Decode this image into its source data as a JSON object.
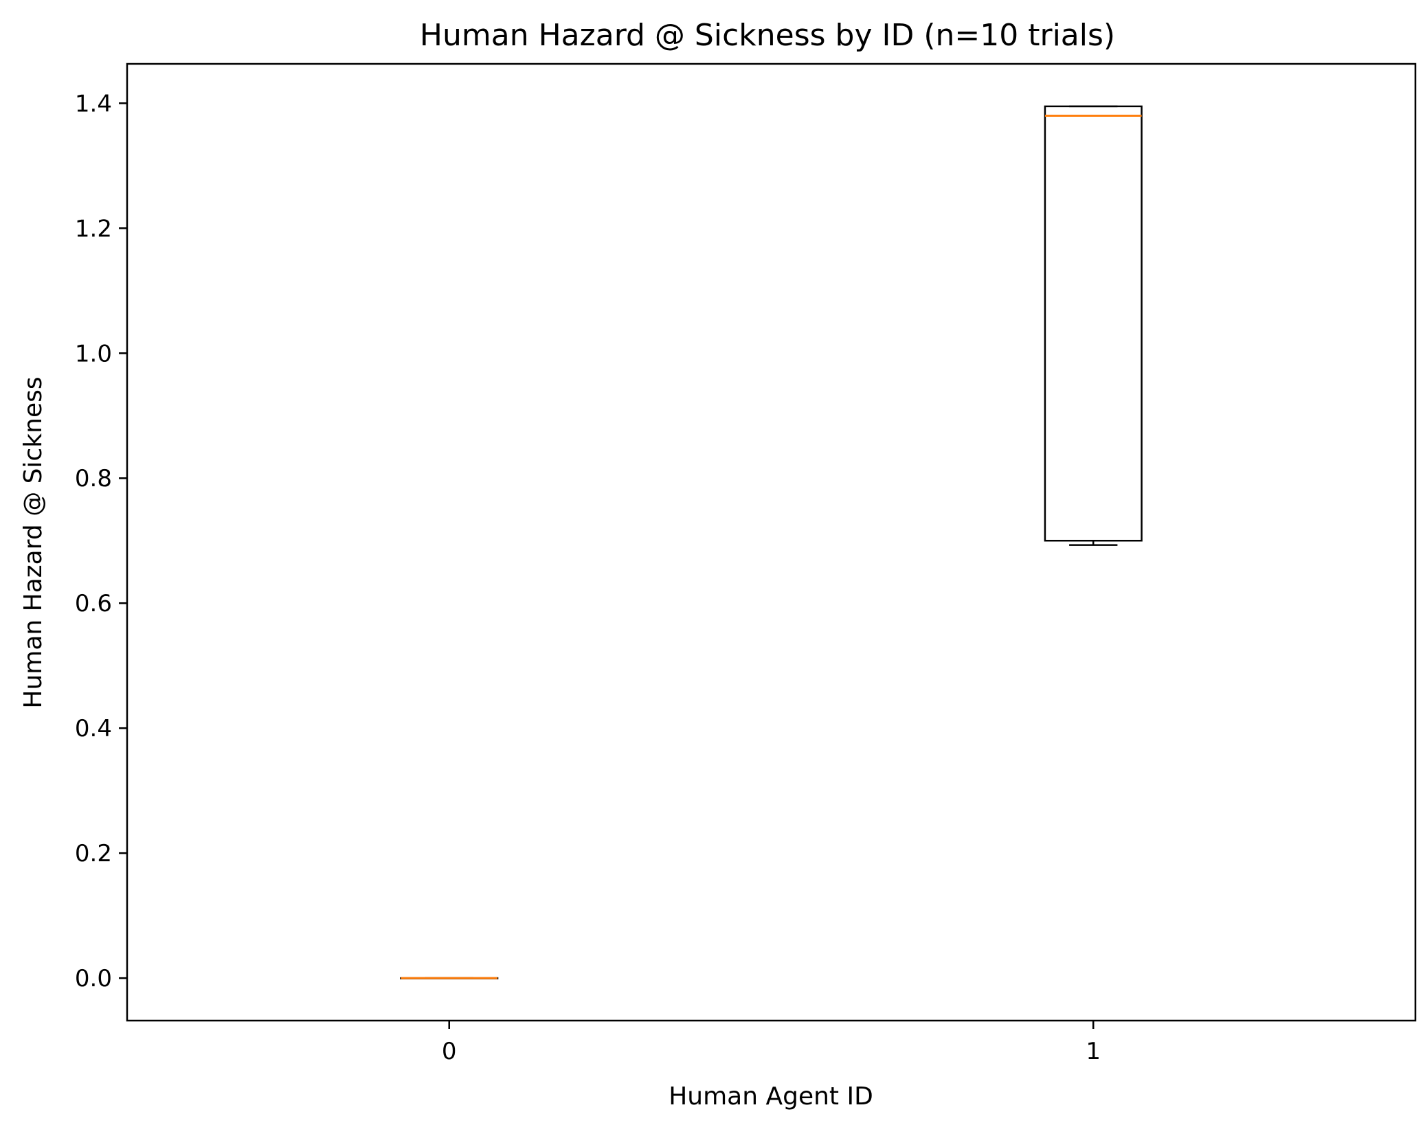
{
  "chart_data": {
    "type": "box",
    "title": "Human Hazard @ Sickness by ID (n=10 trials)",
    "xlabel": "Human Agent ID",
    "ylabel": "Human Hazard @ Sickness",
    "categories": [
      "0",
      "1"
    ],
    "boxes": [
      {
        "category": "0",
        "whisker_low": 0.0,
        "q1": 0.0,
        "median": 0.0,
        "q3": 0.0,
        "whisker_high": 0.0
      },
      {
        "category": "1",
        "whisker_low": 0.693,
        "q1": 0.7,
        "median": 1.38,
        "q3": 1.395,
        "whisker_high": 1.395
      }
    ],
    "ylim": [
      -0.068,
      1.463
    ],
    "yticks": [
      0.0,
      0.2,
      0.4,
      0.6,
      0.8,
      1.0,
      1.2,
      1.4
    ],
    "ytick_labels": [
      "0.0",
      "0.2",
      "0.4",
      "0.6",
      "0.8",
      "1.0",
      "1.2",
      "1.4"
    ],
    "grid": false,
    "colors": {
      "box": "#000000",
      "median": "#ff7f0e"
    }
  }
}
